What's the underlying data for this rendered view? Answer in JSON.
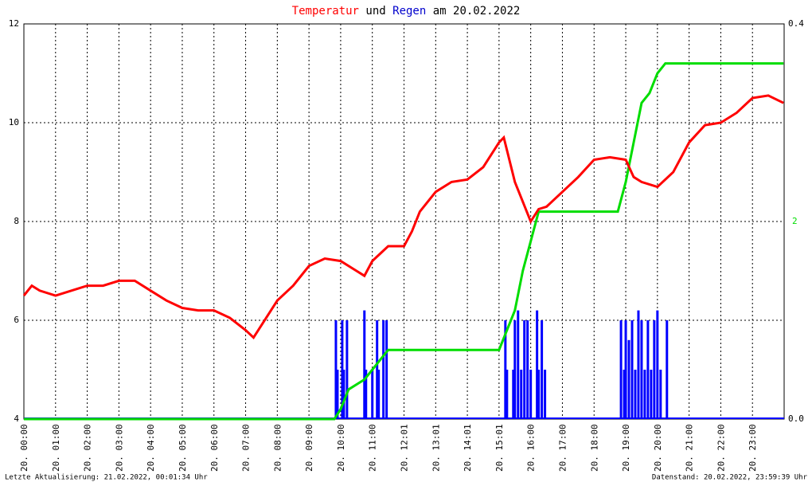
{
  "chart_data": {
    "type": "line",
    "title_words": [
      "und",
      "am 20.02.2022"
    ],
    "footer_left": "Letzte Aktualisierung: 21.02.2022, 00:01:34 Uhr",
    "footer_right": "Datenstand: 20.02.2022, 23:59:39 Uhr",
    "xlim": [
      0,
      24
    ],
    "xticks": [
      {
        "value": 0,
        "label": "20. 00:00"
      },
      {
        "value": 1,
        "label": "20. 01:00"
      },
      {
        "value": 2,
        "label": "20. 02:00"
      },
      {
        "value": 3,
        "label": "20. 03:00"
      },
      {
        "value": 4,
        "label": "20. 04:00"
      },
      {
        "value": 5,
        "label": "20. 05:00"
      },
      {
        "value": 6,
        "label": "20. 06:00"
      },
      {
        "value": 7,
        "label": "20. 07:00"
      },
      {
        "value": 8,
        "label": "20. 08:00"
      },
      {
        "value": 9,
        "label": "20. 09:00"
      },
      {
        "value": 10,
        "label": "20. 10:00"
      },
      {
        "value": 11,
        "label": "20. 11:00"
      },
      {
        "value": 12,
        "label": "20. 12:01"
      },
      {
        "value": 13,
        "label": "20. 13:01"
      },
      {
        "value": 14,
        "label": "20. 14:01"
      },
      {
        "value": 15,
        "label": "20. 15:01"
      },
      {
        "value": 16,
        "label": "20. 16:00"
      },
      {
        "value": 17,
        "label": "20. 17:00"
      },
      {
        "value": 18,
        "label": "20. 18:00"
      },
      {
        "value": 19,
        "label": "20. 19:00"
      },
      {
        "value": 20,
        "label": "20. 20:00"
      },
      {
        "value": 21,
        "label": "20. 21:00"
      },
      {
        "value": 22,
        "label": "20. 22:00"
      },
      {
        "value": 23,
        "label": "20. 23:00"
      }
    ],
    "ylim": [
      4,
      12
    ],
    "yticks": [
      4,
      6,
      8,
      10,
      12
    ],
    "y2lim": [
      0,
      0.4
    ],
    "y2ticks": [
      {
        "value": 0,
        "label": "0.0"
      },
      0.4
    ],
    "y3lim": [
      0,
      4
    ],
    "y3ticks": [
      2
    ],
    "y3color": "#00dd00",
    "grid": true,
    "series": [
      {
        "name": "Temperatur",
        "color": "#ff0000",
        "kind": "line",
        "x": [
          0,
          0.25,
          0.5,
          1,
          1.5,
          2,
          2.5,
          3,
          3.5,
          4,
          4.5,
          5,
          5.5,
          6,
          6.5,
          7,
          7.25,
          7.5,
          8,
          8.5,
          9,
          9.5,
          10,
          10.5,
          10.75,
          11,
          11.5,
          12,
          12.25,
          12.5,
          13,
          13.5,
          14,
          14.5,
          15,
          15.15,
          15.5,
          15.75,
          16,
          16.25,
          16.5,
          17,
          17.5,
          18,
          18.5,
          19,
          19.25,
          19.5,
          20,
          20.5,
          21,
          21.5,
          22,
          22.5,
          23,
          23.5,
          23.98
        ],
        "values": [
          6.5,
          6.7,
          6.6,
          6.5,
          6.6,
          6.7,
          6.7,
          6.8,
          6.8,
          6.6,
          6.4,
          6.25,
          6.2,
          6.2,
          6.05,
          5.8,
          5.65,
          5.9,
          6.4,
          6.7,
          7.1,
          7.25,
          7.2,
          7.0,
          6.9,
          7.2,
          7.5,
          7.5,
          7.8,
          8.2,
          8.6,
          8.8,
          8.85,
          9.1,
          9.6,
          9.7,
          8.8,
          8.4,
          8.0,
          8.25,
          8.3,
          8.6,
          8.9,
          9.25,
          9.3,
          9.25,
          8.9,
          8.8,
          8.7,
          9.0,
          9.6,
          9.95,
          10.0,
          10.2,
          10.5,
          10.55,
          10.4
        ]
      },
      {
        "name": "Regen",
        "color": "#0000ff",
        "kind": "bar",
        "axis": "y2",
        "x": [
          9.85,
          9.9,
          10.05,
          10.1,
          10.2,
          10.75,
          10.8,
          11.0,
          11.15,
          11.2,
          11.35,
          11.45,
          15.2,
          15.25,
          15.45,
          15.5,
          15.6,
          15.7,
          15.8,
          15.9,
          16.0,
          16.2,
          16.25,
          16.35,
          16.45,
          18.85,
          18.95,
          19.0,
          19.1,
          19.2,
          19.3,
          19.4,
          19.5,
          19.6,
          19.7,
          19.8,
          19.9,
          20.0,
          20.1,
          20.3
        ],
        "values": [
          0.1,
          0.05,
          0.1,
          0.05,
          0.1,
          0.11,
          0.05,
          0.05,
          0.1,
          0.05,
          0.1,
          0.1,
          0.1,
          0.05,
          0.05,
          0.1,
          0.11,
          0.05,
          0.1,
          0.1,
          0.05,
          0.11,
          0.05,
          0.1,
          0.05,
          0.1,
          0.05,
          0.1,
          0.08,
          0.1,
          0.05,
          0.11,
          0.1,
          0.05,
          0.1,
          0.05,
          0.1,
          0.11,
          0.05,
          0.1
        ]
      },
      {
        "color": "#00dd00",
        "kind": "line",
        "axis": "y3",
        "x": [
          0,
          9.8,
          10.0,
          10.25,
          10.75,
          11.0,
          11.25,
          11.5,
          15.0,
          15.25,
          15.5,
          15.75,
          16.0,
          16.25,
          18.75,
          19.0,
          19.25,
          19.5,
          19.75,
          20.0,
          20.25,
          23.98
        ],
        "values": [
          0,
          0,
          0.1,
          0.3,
          0.4,
          0.5,
          0.6,
          0.7,
          0.7,
          0.9,
          1.1,
          1.5,
          1.8,
          2.1,
          2.1,
          2.4,
          2.8,
          3.2,
          3.3,
          3.5,
          3.6,
          3.6
        ]
      }
    ]
  }
}
